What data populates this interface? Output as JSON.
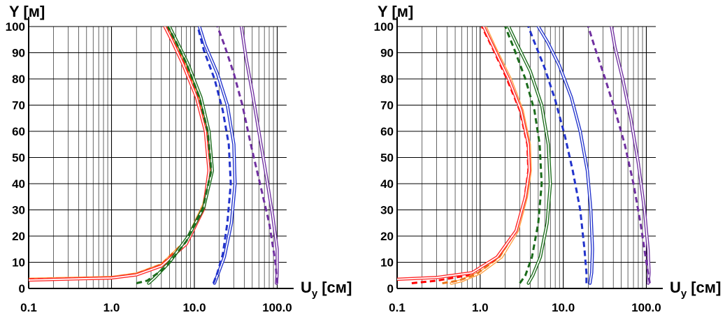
{
  "chart_data": [
    {
      "type": "line",
      "xscale": "log",
      "xlim": [
        0.1,
        130
      ],
      "ylim": [
        0,
        100
      ],
      "x_tick_labels": [
        "0.1",
        "1.0",
        "10.0",
        "100.0"
      ],
      "y_tick_labels": [
        "0",
        "10",
        "20",
        "30",
        "40",
        "50",
        "60",
        "70",
        "80",
        "90",
        "100"
      ],
      "ylabel": "Y [м]",
      "xlabel_main": "U",
      "xlabel_sub": "y",
      "xlabel_unit": "[см]",
      "grid": true,
      "series": [
        {
          "color": "#FFA040",
          "style": "solid",
          "double": true,
          "points": [
            [
              0.1,
              3.5
            ],
            [
              1.0,
              4.2
            ],
            [
              2.0,
              5.5
            ],
            [
              4.0,
              9
            ],
            [
              8.0,
              18
            ],
            [
              13,
              32
            ],
            [
              15.5,
              45
            ],
            [
              14,
              60
            ],
            [
              11,
              73
            ],
            [
              7.5,
              86
            ],
            [
              5.5,
              95
            ],
            [
              4.6,
              100
            ]
          ]
        },
        {
          "color": "#E8731A",
          "style": "dashed",
          "double": false,
          "points": [
            [
              0.1,
              3.4
            ],
            [
              1.0,
              4.3
            ],
            [
              2.0,
              5.6
            ],
            [
              4.0,
              9.2
            ],
            [
              8.0,
              18.5
            ],
            [
              13,
              32
            ],
            [
              15.8,
              45
            ],
            [
              14.2,
              60
            ],
            [
              11.2,
              73
            ],
            [
              7.6,
              86
            ],
            [
              5.6,
              95
            ],
            [
              4.7,
              100
            ]
          ]
        },
        {
          "color": "#FF0000",
          "style": "dashed",
          "double": false,
          "points": [
            [
              0.1,
              3.5
            ],
            [
              1.0,
              4.1
            ],
            [
              2.0,
              5.3
            ],
            [
              4.0,
              8.8
            ],
            [
              8.0,
              17.5
            ],
            [
              13,
              31
            ],
            [
              15.2,
              45
            ],
            [
              13.8,
              60
            ],
            [
              10.8,
              73
            ],
            [
              7.4,
              86
            ],
            [
              5.4,
              95
            ],
            [
              4.5,
              100
            ]
          ]
        },
        {
          "color": "#FF2A2A",
          "style": "solid",
          "double": true,
          "points": [
            [
              0.1,
              3.2
            ],
            [
              1.0,
              4.0
            ],
            [
              2.0,
              5.2
            ],
            [
              4.0,
              8.6
            ],
            [
              8.0,
              17.0
            ],
            [
              13,
              30.5
            ],
            [
              15.0,
              45
            ],
            [
              13.6,
              60
            ],
            [
              10.6,
              73
            ],
            [
              7.2,
              86
            ],
            [
              5.3,
              95
            ],
            [
              4.4,
              100
            ]
          ]
        },
        {
          "color": "#1A6B1A",
          "style": "solid",
          "double": true,
          "points": [
            [
              2.8,
              2
            ],
            [
              3.3,
              4
            ],
            [
              5.0,
              10
            ],
            [
              8.5,
              20
            ],
            [
              13,
              31
            ],
            [
              16.5,
              45
            ],
            [
              15,
              60
            ],
            [
              12,
              73
            ],
            [
              8.3,
              86
            ],
            [
              6.0,
              95
            ],
            [
              5.0,
              100
            ]
          ]
        },
        {
          "color": "#1A6B1A",
          "style": "dashed",
          "double": false,
          "points": [
            [
              2.0,
              2
            ],
            [
              2.7,
              3
            ],
            [
              4.5,
              8
            ],
            [
              8.0,
              18
            ],
            [
              12.5,
              30
            ],
            [
              16,
              45
            ],
            [
              14.5,
              60
            ],
            [
              11.5,
              73
            ],
            [
              8.0,
              86
            ],
            [
              5.8,
              95
            ],
            [
              4.8,
              100
            ]
          ]
        },
        {
          "color": "#2233CC",
          "style": "solid",
          "double": true,
          "points": [
            [
              17.5,
              2
            ],
            [
              19,
              5
            ],
            [
              23,
              12
            ],
            [
              28,
              25
            ],
            [
              31,
              40
            ],
            [
              30,
              55
            ],
            [
              25,
              70
            ],
            [
              19,
              82
            ],
            [
              13.5,
              93
            ],
            [
              11.5,
              100
            ]
          ]
        },
        {
          "color": "#2233CC",
          "style": "dashed",
          "double": false,
          "points": [
            [
              17,
              2
            ],
            [
              19,
              6
            ],
            [
              22,
              13
            ],
            [
              25,
              25
            ],
            [
              27.5,
              40
            ],
            [
              26,
              55
            ],
            [
              22,
              68
            ],
            [
              17.5,
              80
            ],
            [
              13,
              91
            ],
            [
              11,
              100
            ]
          ]
        },
        {
          "color": "#7030A0",
          "style": "solid",
          "double": true,
          "points": [
            [
              98,
              2
            ],
            [
              100,
              6
            ],
            [
              100,
              15
            ],
            [
              88,
              28
            ],
            [
              72,
              45
            ],
            [
              60,
              60
            ],
            [
              50,
              75
            ],
            [
              42,
              88
            ],
            [
              37,
              100
            ]
          ]
        },
        {
          "color": "#7030A0",
          "style": "dashed",
          "double": false,
          "points": [
            [
              100,
              2
            ],
            [
              95,
              10
            ],
            [
              80,
              25
            ],
            [
              62,
              40
            ],
            [
              48,
              55
            ],
            [
              38,
              70
            ],
            [
              30,
              82
            ],
            [
              23,
              93
            ],
            [
              19,
              100
            ]
          ]
        }
      ]
    },
    {
      "type": "line",
      "xscale": "log",
      "xlim": [
        0.1,
        130
      ],
      "ylim": [
        0,
        100
      ],
      "x_tick_labels": [
        "0.1",
        "1.0",
        "10.0",
        "100.0"
      ],
      "y_tick_labels": [
        "0",
        "10",
        "20",
        "30",
        "40",
        "50",
        "60",
        "70",
        "80",
        "90",
        "100"
      ],
      "ylabel": "Y [м]",
      "xlabel_main": "U",
      "xlabel_sub": "y",
      "xlabel_unit": "[см]",
      "grid": true,
      "series": [
        {
          "color": "#FFA040",
          "style": "solid",
          "double": true,
          "points": [
            [
              0.45,
              2
            ],
            [
              0.6,
              3
            ],
            [
              1.0,
              6
            ],
            [
              1.8,
              12
            ],
            [
              2.8,
              22
            ],
            [
              3.6,
              35
            ],
            [
              4.0,
              45
            ],
            [
              3.9,
              55
            ],
            [
              3.2,
              68
            ],
            [
              2.3,
              80
            ],
            [
              1.5,
              92
            ],
            [
              1.15,
              100
            ]
          ]
        },
        {
          "color": "#E8731A",
          "style": "dashed",
          "double": false,
          "points": [
            [
              0.35,
              2
            ],
            [
              0.55,
              3
            ],
            [
              0.9,
              5.5
            ],
            [
              1.7,
              12
            ],
            [
              2.7,
              22
            ],
            [
              3.5,
              35
            ],
            [
              3.9,
              45
            ],
            [
              3.8,
              55
            ],
            [
              3.1,
              68
            ],
            [
              2.2,
              80
            ],
            [
              1.45,
              92
            ],
            [
              1.1,
              100
            ]
          ]
        },
        {
          "color": "#FF0000",
          "style": "dashed",
          "double": false,
          "points": [
            [
              0.15,
              2
            ],
            [
              0.3,
              3
            ],
            [
              0.7,
              5
            ],
            [
              1.5,
              11
            ],
            [
              2.6,
              21
            ],
            [
              3.4,
              34
            ],
            [
              3.8,
              45
            ],
            [
              3.7,
              55
            ],
            [
              3.0,
              68
            ],
            [
              2.1,
              80
            ],
            [
              1.4,
              92
            ],
            [
              1.05,
              100
            ]
          ]
        },
        {
          "color": "#FF2A2A",
          "style": "solid",
          "double": true,
          "points": [
            [
              0.1,
              3.5
            ],
            [
              0.3,
              4.2
            ],
            [
              0.8,
              6
            ],
            [
              1.6,
              12
            ],
            [
              2.7,
              22
            ],
            [
              3.5,
              35
            ],
            [
              3.9,
              45
            ],
            [
              3.8,
              55
            ],
            [
              3.1,
              68
            ],
            [
              2.2,
              80
            ],
            [
              1.45,
              92
            ],
            [
              1.1,
              100
            ]
          ]
        },
        {
          "color": "#1A6B1A",
          "style": "solid",
          "double": true,
          "points": [
            [
              3.8,
              2
            ],
            [
              4.3,
              5
            ],
            [
              5.3,
              12
            ],
            [
              6.4,
              25
            ],
            [
              7.0,
              40
            ],
            [
              6.6,
              55
            ],
            [
              5.5,
              70
            ],
            [
              4.0,
              83
            ],
            [
              2.8,
              93
            ],
            [
              2.2,
              100
            ]
          ]
        },
        {
          "color": "#1A6B1A",
          "style": "dashed",
          "double": false,
          "points": [
            [
              3.0,
              2
            ],
            [
              3.5,
              5
            ],
            [
              4.2,
              12
            ],
            [
              5.0,
              25
            ],
            [
              5.5,
              40
            ],
            [
              5.2,
              55
            ],
            [
              4.5,
              68
            ],
            [
              3.5,
              80
            ],
            [
              2.6,
              91
            ],
            [
              2.0,
              100
            ]
          ]
        },
        {
          "color": "#2233CC",
          "style": "solid",
          "double": true,
          "points": [
            [
              21,
              2
            ],
            [
              22,
              6
            ],
            [
              22.5,
              15
            ],
            [
              21.5,
              30
            ],
            [
              19.5,
              45
            ],
            [
              16,
              60
            ],
            [
              12.5,
              73
            ],
            [
              9,
              85
            ],
            [
              6.5,
              94
            ],
            [
              5.0,
              100
            ]
          ]
        },
        {
          "color": "#2233CC",
          "style": "dashed",
          "double": false,
          "points": [
            [
              19,
              2
            ],
            [
              19,
              6
            ],
            [
              18,
              15
            ],
            [
              16,
              30
            ],
            [
              13,
              45
            ],
            [
              10.5,
              58
            ],
            [
              8.0,
              72
            ],
            [
              6.0,
              84
            ],
            [
              4.5,
              94
            ],
            [
              3.8,
              100
            ]
          ]
        },
        {
          "color": "#7030A0",
          "style": "solid",
          "double": true,
          "points": [
            [
              105,
              2
            ],
            [
              108,
              6
            ],
            [
              105,
              15
            ],
            [
              95,
              30
            ],
            [
              80,
              48
            ],
            [
              65,
              65
            ],
            [
              52,
              80
            ],
            [
              42,
              92
            ],
            [
              38,
              100
            ]
          ]
        },
        {
          "color": "#7030A0",
          "style": "dashed",
          "double": false,
          "points": [
            [
              110,
              2
            ],
            [
              100,
              10
            ],
            [
              85,
              25
            ],
            [
              70,
              40
            ],
            [
              55,
              55
            ],
            [
              42,
              68
            ],
            [
              32,
              80
            ],
            [
              24,
              92
            ],
            [
              20,
              100
            ]
          ]
        }
      ]
    }
  ]
}
